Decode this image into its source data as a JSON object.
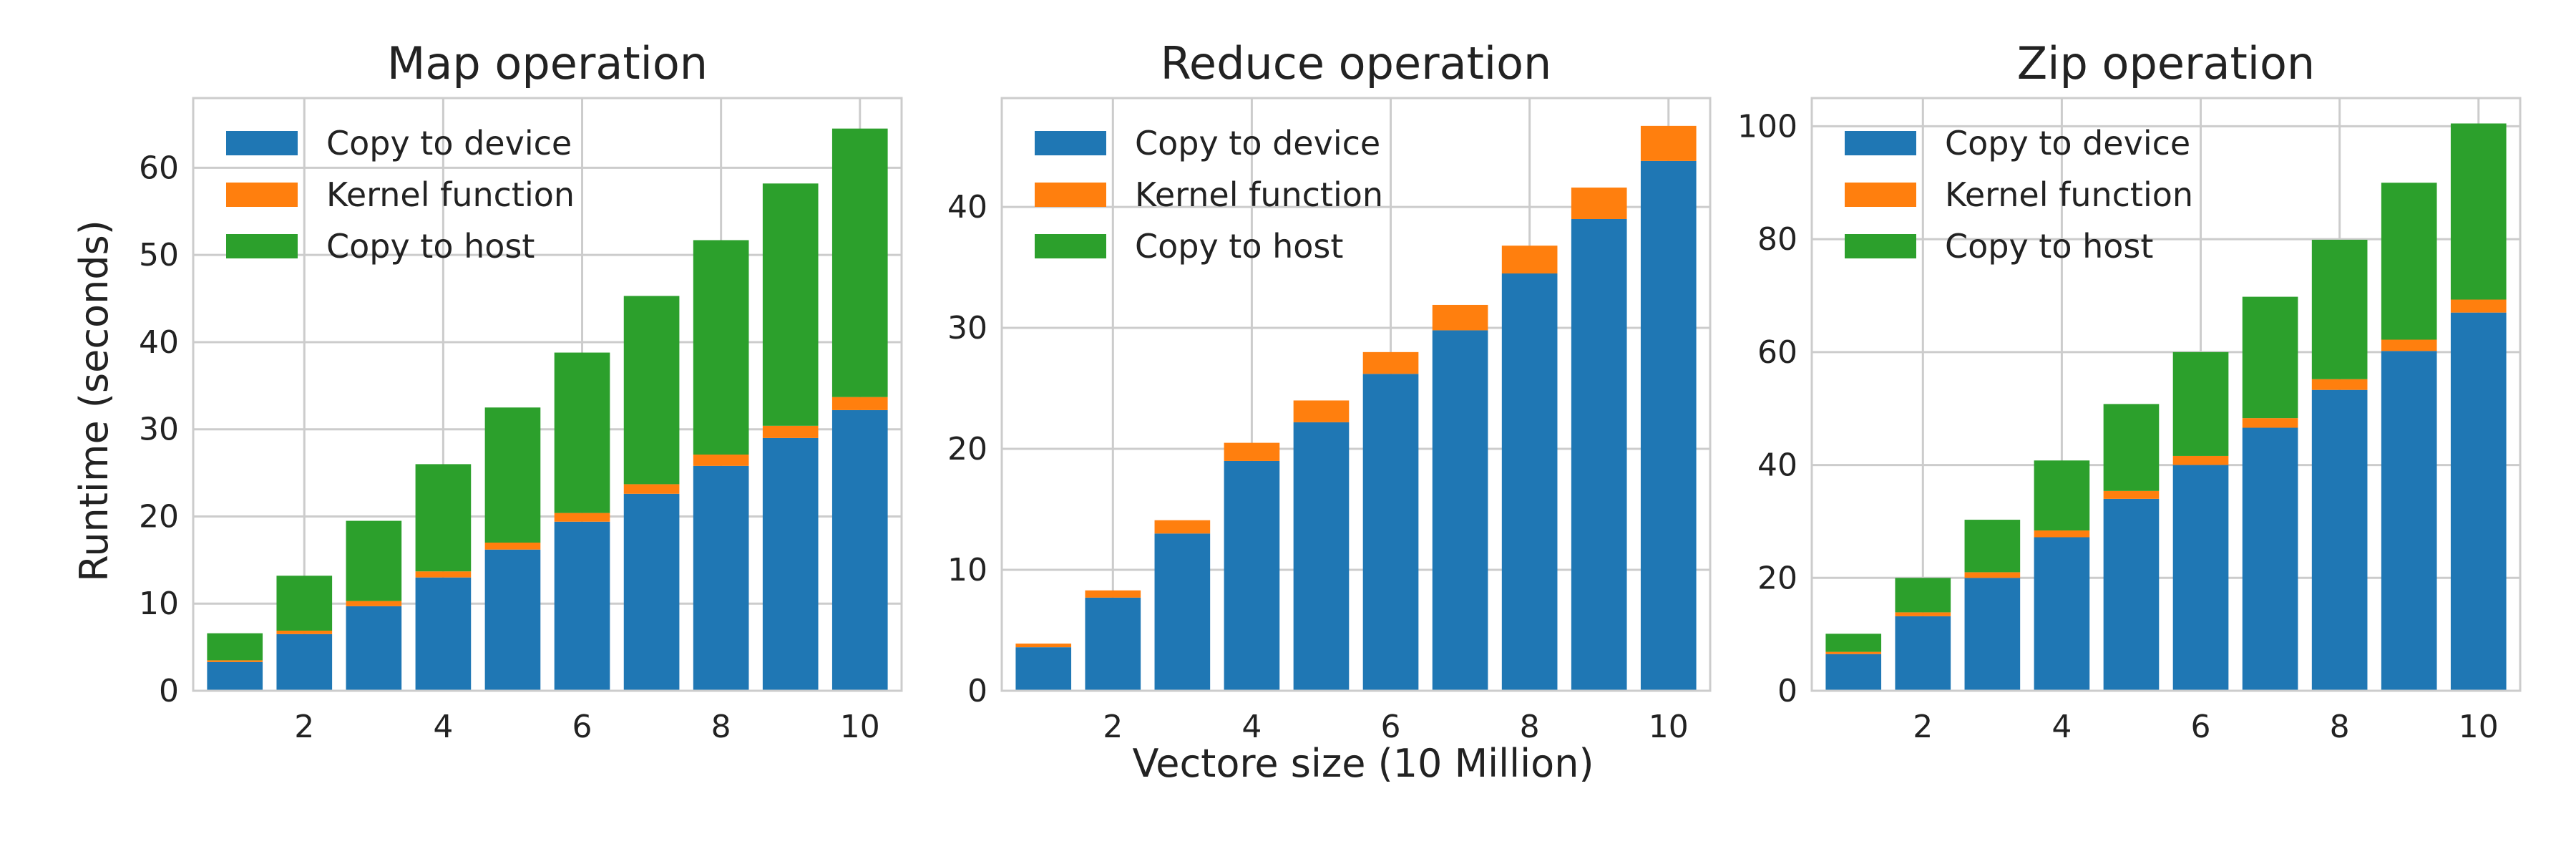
{
  "figure": {
    "ylabel": "Runtime (seconds)",
    "xlabel": "Vectore size (10 Million)"
  },
  "colors": {
    "copy_to_device": "#1f77b4",
    "kernel_function": "#ff7f0e",
    "copy_to_host": "#2ca02c"
  },
  "chart_data": [
    {
      "type": "bar",
      "stacked": true,
      "title": "Map operation",
      "x": [
        1,
        2,
        3,
        4,
        5,
        6,
        7,
        8,
        9,
        10
      ],
      "xticks": [
        2,
        4,
        6,
        8,
        10
      ],
      "ylim": [
        0,
        68
      ],
      "yticks": [
        0,
        10,
        20,
        30,
        40,
        50,
        60
      ],
      "grid": true,
      "legend": "top-left",
      "series": [
        {
          "name": "Copy to device",
          "key": "copy_to_device",
          "values": [
            3.3,
            6.5,
            9.7,
            13.0,
            16.2,
            19.4,
            22.6,
            25.8,
            29.0,
            32.2
          ]
        },
        {
          "name": "Kernel function",
          "key": "kernel_function",
          "values": [
            0.2,
            0.4,
            0.6,
            0.7,
            0.8,
            1.0,
            1.1,
            1.3,
            1.4,
            1.5
          ]
        },
        {
          "name": "Copy to host",
          "key": "copy_to_host",
          "values": [
            3.1,
            6.3,
            9.2,
            12.3,
            15.5,
            18.4,
            21.6,
            24.6,
            27.8,
            30.8
          ]
        }
      ]
    },
    {
      "type": "bar",
      "stacked": true,
      "title": "Reduce operation",
      "x": [
        1,
        2,
        3,
        4,
        5,
        6,
        7,
        8,
        9,
        10
      ],
      "xticks": [
        2,
        4,
        6,
        8,
        10
      ],
      "ylim": [
        0,
        49
      ],
      "yticks": [
        0,
        10,
        20,
        30,
        40
      ],
      "grid": true,
      "legend": "top-left",
      "series": [
        {
          "name": "Copy to device",
          "key": "copy_to_device",
          "values": [
            3.6,
            7.7,
            13.0,
            19.0,
            22.2,
            26.2,
            29.8,
            34.5,
            39.0,
            43.8
          ]
        },
        {
          "name": "Kernel function",
          "key": "kernel_function",
          "values": [
            0.3,
            0.6,
            1.1,
            1.5,
            1.8,
            1.8,
            2.1,
            2.3,
            2.6,
            2.9
          ]
        },
        {
          "name": "Copy to host",
          "key": "copy_to_host",
          "values": [
            0,
            0,
            0,
            0,
            0,
            0,
            0,
            0,
            0,
            0
          ]
        }
      ]
    },
    {
      "type": "bar",
      "stacked": true,
      "title": "Zip operation",
      "x": [
        1,
        2,
        3,
        4,
        5,
        6,
        7,
        8,
        9,
        10
      ],
      "xticks": [
        2,
        4,
        6,
        8,
        10
      ],
      "ylim": [
        0,
        105
      ],
      "yticks": [
        0,
        20,
        40,
        60,
        80,
        100
      ],
      "grid": true,
      "legend": "top-left",
      "series": [
        {
          "name": "Copy to device",
          "key": "copy_to_device",
          "values": [
            6.5,
            13.2,
            20.0,
            27.2,
            34.0,
            40.0,
            46.6,
            53.3,
            60.2,
            67.0
          ]
        },
        {
          "name": "Kernel function",
          "key": "kernel_function",
          "values": [
            0.4,
            0.7,
            1.0,
            1.2,
            1.4,
            1.6,
            1.7,
            1.9,
            2.0,
            2.3
          ]
        },
        {
          "name": "Copy to host",
          "key": "copy_to_host",
          "values": [
            3.2,
            6.1,
            9.3,
            12.4,
            15.4,
            18.4,
            21.5,
            24.7,
            27.8,
            31.2
          ]
        }
      ]
    }
  ]
}
